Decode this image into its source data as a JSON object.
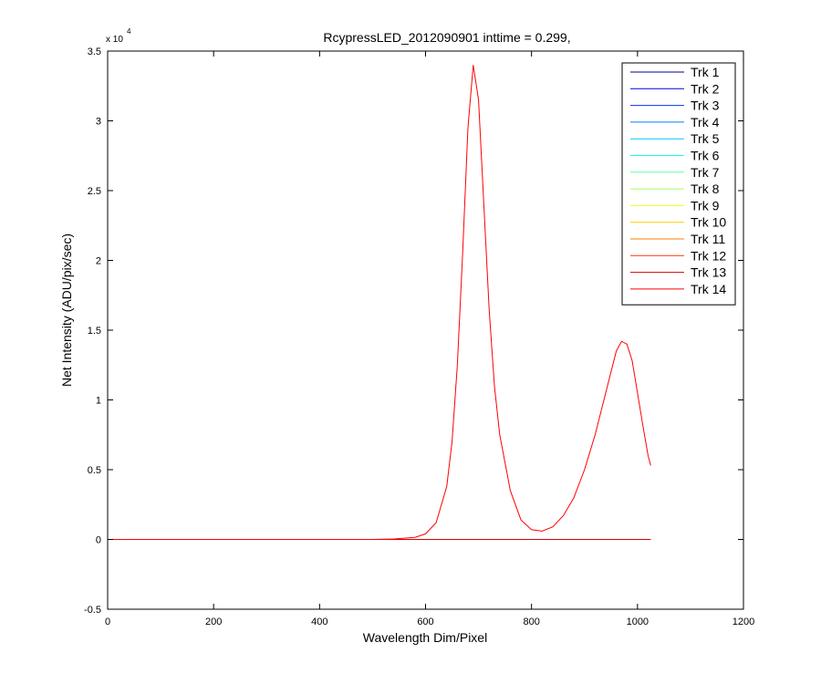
{
  "chart_data": {
    "type": "line",
    "title": "RcypressLED_2012090901 inttime = 0.299,",
    "xlabel": "Wavelength Dim/Pixel",
    "ylabel": "Net Intensity (ADU/pix/sec)",
    "xlim": [
      0,
      1200
    ],
    "ylim": [
      -0.5,
      3.5
    ],
    "y_exponent_label": "x 10",
    "y_exponent_power": "4",
    "xticks": [
      "0",
      "200",
      "400",
      "600",
      "800",
      "1000",
      "1200"
    ],
    "yticks": [
      "-0.5",
      "0",
      "0.5",
      "1",
      "1.5",
      "2",
      "2.5",
      "3",
      "3.5"
    ],
    "grid": false,
    "legend_position": "top-right",
    "series": [
      {
        "name": "Trk 1",
        "color": "#00008f",
        "flat": true
      },
      {
        "name": "Trk 2",
        "color": "#0000d9",
        "flat": true
      },
      {
        "name": "Trk 3",
        "color": "#0033ff",
        "flat": true
      },
      {
        "name": "Trk 4",
        "color": "#007fff",
        "flat": true
      },
      {
        "name": "Trk 5",
        "color": "#00c8ff",
        "flat": true
      },
      {
        "name": "Trk 6",
        "color": "#14ffeb",
        "flat": true
      },
      {
        "name": "Trk 7",
        "color": "#5cffa3",
        "flat": true
      },
      {
        "name": "Trk 8",
        "color": "#a3ff5c",
        "flat": true
      },
      {
        "name": "Trk 9",
        "color": "#ebff14",
        "flat": true
      },
      {
        "name": "Trk 10",
        "color": "#ffc800",
        "flat": true
      },
      {
        "name": "Trk 11",
        "color": "#ff7f00",
        "flat": true
      },
      {
        "name": "Trk 12",
        "color": "#ff3300",
        "flat": true
      },
      {
        "name": "Trk 13",
        "color": "#d90000",
        "flat": true
      },
      {
        "name": "Trk 14",
        "color": "#ff0000",
        "x": [
          0,
          100,
          200,
          300,
          400,
          500,
          540,
          580,
          600,
          620,
          640,
          650,
          660,
          670,
          680,
          690,
          700,
          710,
          720,
          730,
          740,
          760,
          780,
          800,
          820,
          840,
          860,
          880,
          900,
          920,
          940,
          950,
          960,
          970,
          980,
          990,
          1000,
          1010,
          1020,
          1025
        ],
        "y": [
          0,
          0,
          0,
          0,
          0,
          0,
          0.003,
          0.015,
          0.04,
          0.12,
          0.38,
          0.7,
          1.25,
          2.05,
          2.95,
          3.4,
          3.15,
          2.4,
          1.65,
          1.1,
          0.75,
          0.35,
          0.14,
          0.07,
          0.06,
          0.09,
          0.17,
          0.3,
          0.5,
          0.75,
          1.05,
          1.2,
          1.35,
          1.42,
          1.4,
          1.28,
          1.05,
          0.82,
          0.6,
          0.53
        ]
      }
    ]
  }
}
